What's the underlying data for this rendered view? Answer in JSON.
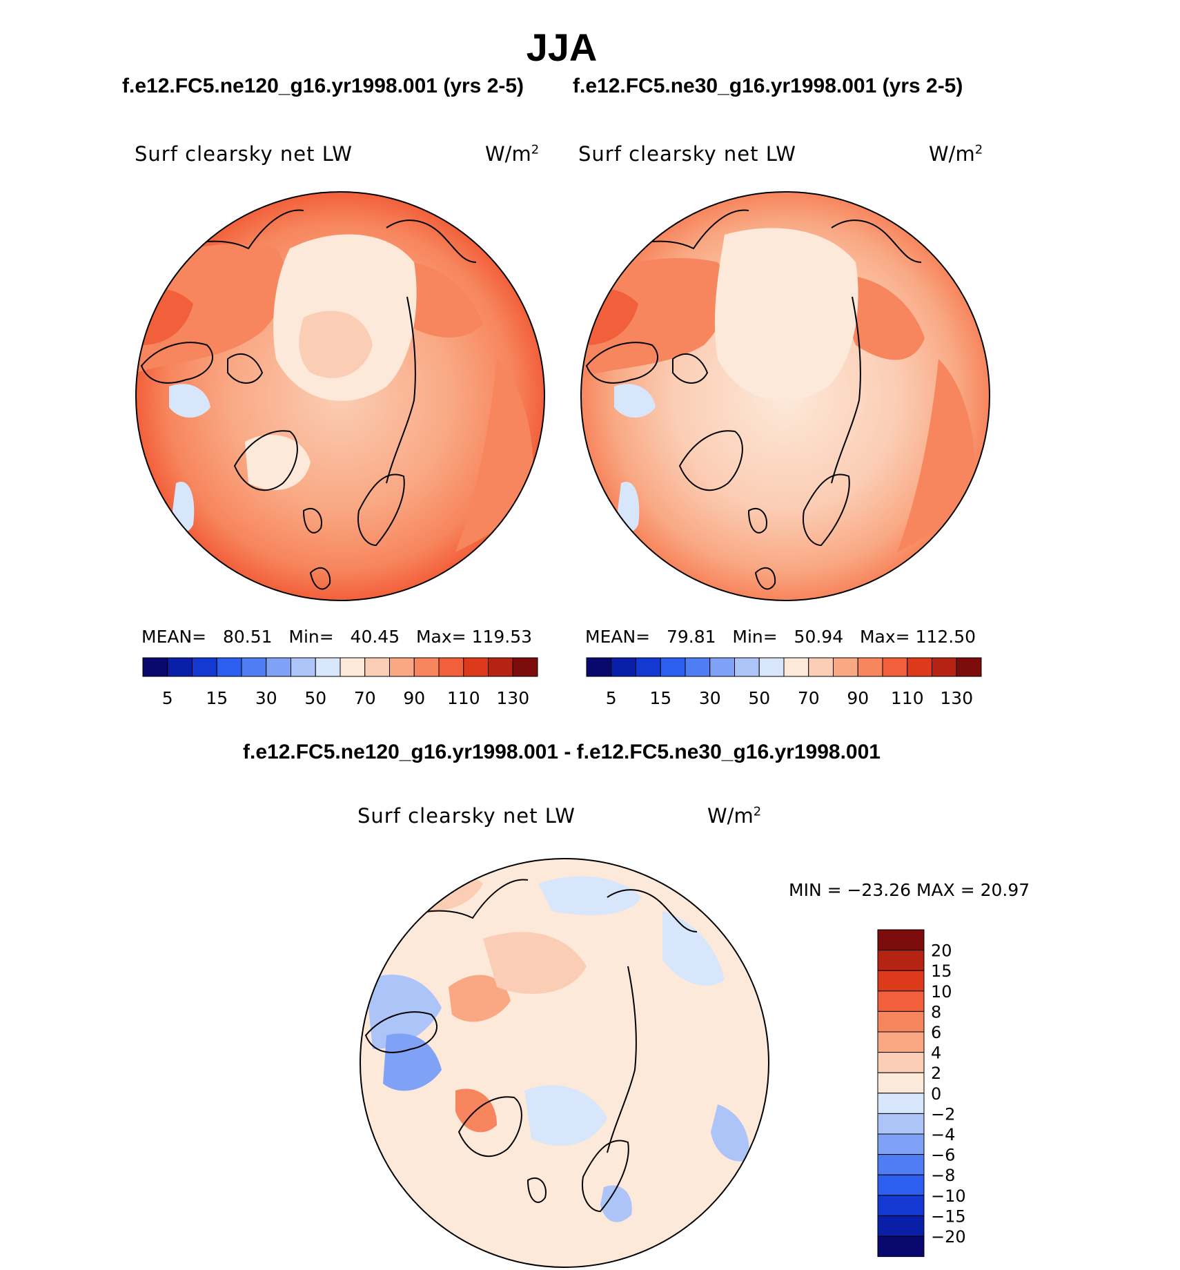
{
  "season_title": "JJA",
  "top_panels": [
    {
      "case_title": "f.e12.FC5.ne120_g16.yr1998.001 (yrs 2-5)",
      "variable": "Surf clearsky net LW",
      "units_base": "W/m",
      "units_exp": "2",
      "stats": {
        "mean_label": "MEAN=",
        "mean": "80.51",
        "min_label": "Min=",
        "min": "40.45",
        "max_label": "Max=",
        "max": "119.53"
      }
    },
    {
      "case_title": "f.e12.FC5.ne30_g16.yr1998.001 (yrs 2-5)",
      "variable": "Surf clearsky net LW",
      "units_base": "W/m",
      "units_exp": "2",
      "stats": {
        "mean_label": "MEAN=",
        "mean": "79.81",
        "min_label": "Min=",
        "min": "50.94",
        "max_label": "Max=",
        "max": "112.50"
      }
    }
  ],
  "abs_colorbar": {
    "colors": [
      "#08086e",
      "#0a1fa8",
      "#1438d2",
      "#2c5ef0",
      "#4f7ef4",
      "#7fa2f6",
      "#acc4f8",
      "#d8e6fb",
      "#fde9d9",
      "#fbcdb4",
      "#f9a883",
      "#f7855d",
      "#f2603b",
      "#dd3a1c",
      "#b52412",
      "#7d0c0c"
    ],
    "tick_labels": [
      "5",
      "15",
      "30",
      "50",
      "70",
      "90",
      "110",
      "130"
    ]
  },
  "diff_panel": {
    "title": "f.e12.FC5.ne120_g16.yr1998.001 - f.e12.FC5.ne30_g16.yr1998.001",
    "variable": "Surf clearsky net LW",
    "units_base": "W/m",
    "units_exp": "2",
    "stats_text": "MIN = −23.26 MAX =   20.97",
    "colorbar": {
      "colors_top_to_bottom": [
        "#7d0c0c",
        "#b52412",
        "#dd3a1c",
        "#f2603b",
        "#f7855d",
        "#f9a883",
        "#fbcdb4",
        "#fde9d9",
        "#d8e6fb",
        "#acc4f8",
        "#7fa2f6",
        "#4f7ef4",
        "#2c5ef0",
        "#1438d2",
        "#0a1fa8",
        "#08086e"
      ],
      "labels": [
        "20",
        "15",
        "10",
        "8",
        "6",
        "4",
        "2",
        "0",
        "−2",
        "−4",
        "−6",
        "−8",
        "−10",
        "−15",
        "−20"
      ]
    }
  }
}
